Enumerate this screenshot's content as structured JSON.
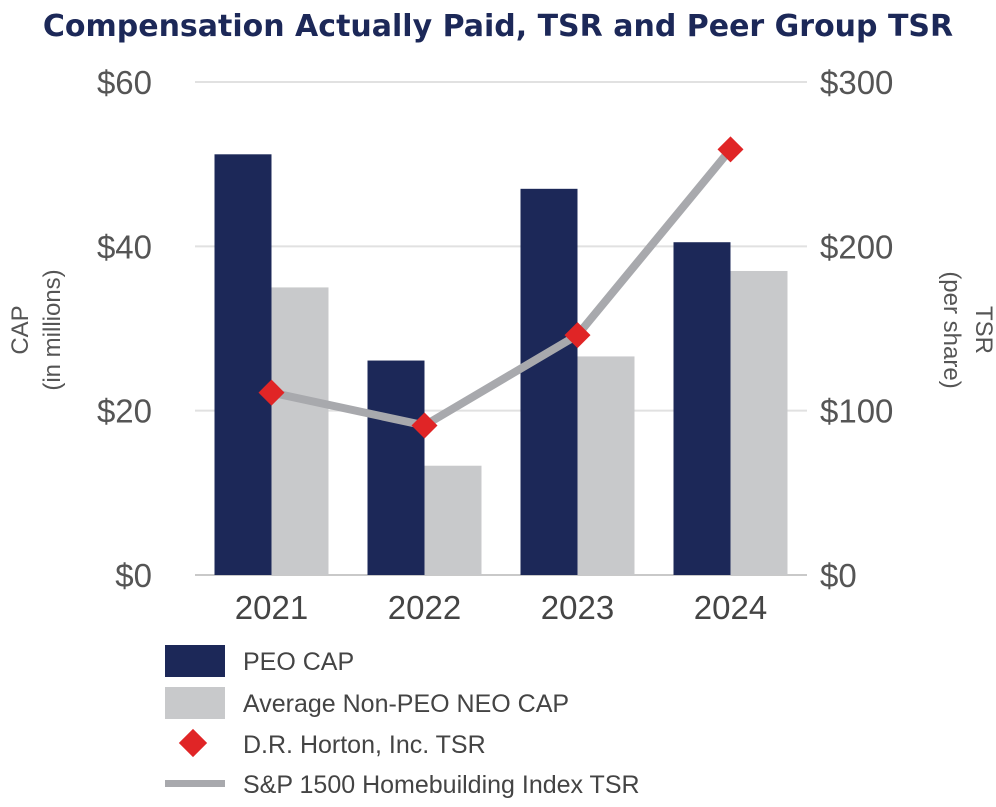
{
  "chart_data": {
    "type": "bar",
    "title": "Compensation Actually Paid, TSR and Peer Group TSR",
    "categories": [
      "2021",
      "2022",
      "2023",
      "2024"
    ],
    "ylabel_left": [
      "CAP",
      "(in millions)"
    ],
    "ylabel_right": [
      "TSR",
      "(per share)"
    ],
    "ylim_left": [
      0,
      60
    ],
    "ylim_right": [
      0,
      300
    ],
    "yticks_left": [
      "$0",
      "$20",
      "$40",
      "$60"
    ],
    "yticks_right": [
      "$0",
      "$100",
      "$200",
      "$300"
    ],
    "grid": true,
    "legend_position": "bottom",
    "series": [
      {
        "name": "PEO CAP",
        "kind": "bar",
        "axis": "left",
        "color": "#1c2858",
        "values": [
          51.2,
          26.1,
          47.0,
          40.5
        ]
      },
      {
        "name": "Average Non-PEO NEO CAP",
        "kind": "bar",
        "axis": "left",
        "color": "#c8c9cb",
        "values": [
          35.0,
          13.3,
          26.6,
          37.0
        ]
      },
      {
        "name": "D.R. Horton, Inc. TSR",
        "kind": "marker",
        "axis": "right",
        "color": "#e02526",
        "values": [
          111,
          91,
          146,
          259
        ]
      },
      {
        "name": "S&P 1500 Homebuilding Index TSR",
        "kind": "line",
        "axis": "right",
        "color": "#a8a9ad",
        "values": [
          111,
          91,
          146,
          259
        ]
      }
    ]
  }
}
